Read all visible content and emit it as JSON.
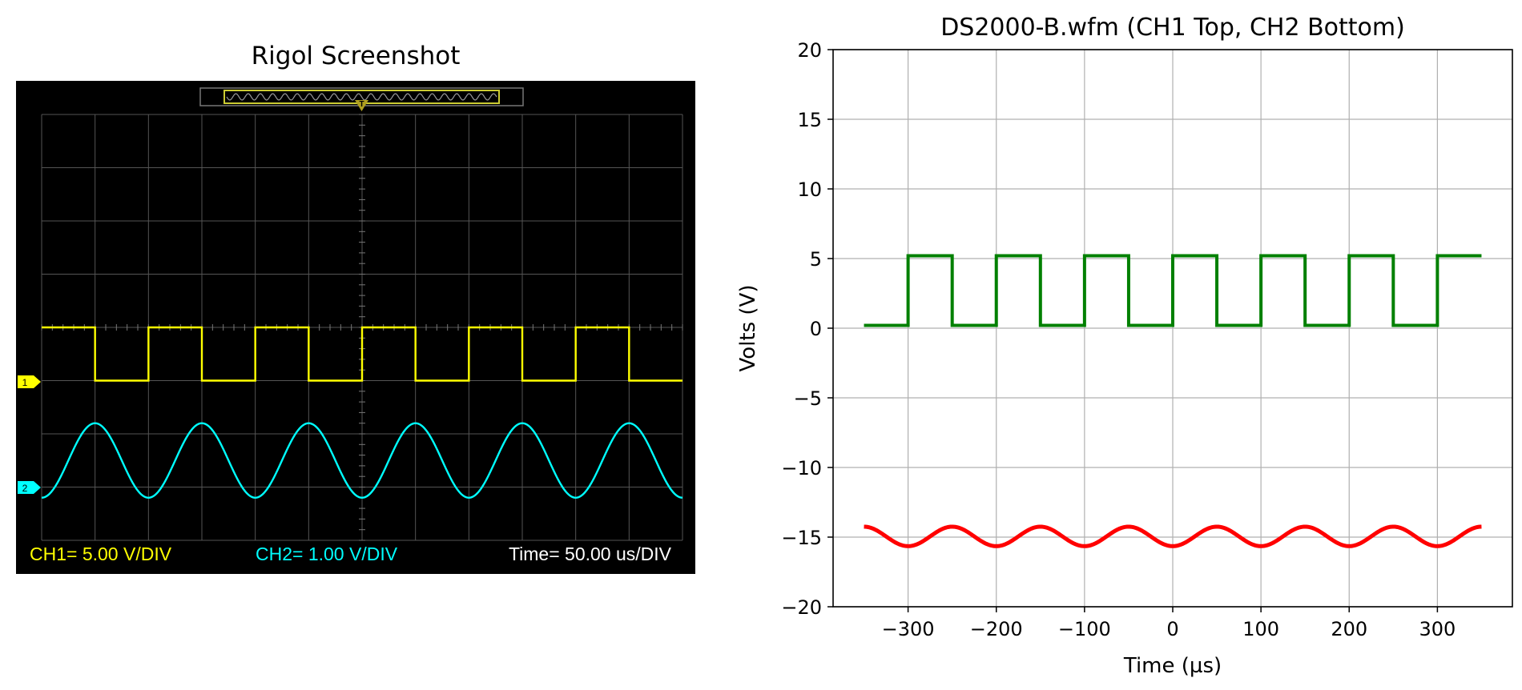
{
  "chart_data": [
    {
      "type": "image",
      "title": "Rigol Screenshot",
      "scope": {
        "ch1_label": "CH1= 5.00 V/DIV",
        "ch2_label": "CH2= 1.00 V/DIV",
        "time_label": "Time= 50.00 us/DIV",
        "ch1_marker": "1",
        "ch2_marker": "2",
        "trigger_marker": "T",
        "ch1_color": "#ffff00",
        "ch2_color": "#00ffff",
        "square_period_divs": 2,
        "square_high_div": 4,
        "square_low_div": 3,
        "sine_center_div": 1.5,
        "sine_amplitude_div": 0.7,
        "sine_period_divs": 2
      }
    },
    {
      "type": "line",
      "title": "DS2000-B.wfm (CH1 Top, CH2 Bottom)",
      "xlabel": "Time (µs)",
      "ylabel": "Volts (V)",
      "xlim": [
        -385,
        385
      ],
      "ylim": [
        -20,
        20
      ],
      "xticks": [
        -300,
        -200,
        -100,
        0,
        100,
        200,
        300
      ],
      "yticks": [
        -20,
        -15,
        -10,
        -5,
        0,
        5,
        10,
        15,
        20
      ],
      "xtick_labels": [
        "−300",
        "−200",
        "−100",
        "0",
        "100",
        "200",
        "300"
      ],
      "ytick_labels": [
        "−20",
        "−15",
        "−10",
        "−5",
        "0",
        "5",
        "10",
        "15",
        "20"
      ],
      "grid": true,
      "series": [
        {
          "color": "#008000",
          "x": [
            -350,
            -300,
            -300,
            -250,
            -250,
            -200,
            -200,
            -150,
            -150,
            -100,
            -100,
            -50,
            -50,
            0,
            0,
            50,
            50,
            100,
            100,
            150,
            150,
            200,
            200,
            250,
            250,
            300,
            300,
            350
          ],
          "y": [
            0.2,
            0.2,
            5.2,
            5.2,
            0.2,
            0.2,
            5.2,
            5.2,
            0.2,
            0.2,
            5.2,
            5.2,
            0.2,
            0.2,
            5.2,
            5.2,
            0.2,
            0.2,
            5.2,
            5.2,
            0.2,
            0.2,
            5.2,
            5.2,
            0.2,
            0.2,
            5.2,
            5.2
          ]
        },
        {
          "color": "#ff0000",
          "function": "sine",
          "x_range": [
            -350,
            350
          ],
          "center": -14.95,
          "amplitude": 0.7,
          "period": 100,
          "peak_at": 50
        }
      ]
    }
  ]
}
